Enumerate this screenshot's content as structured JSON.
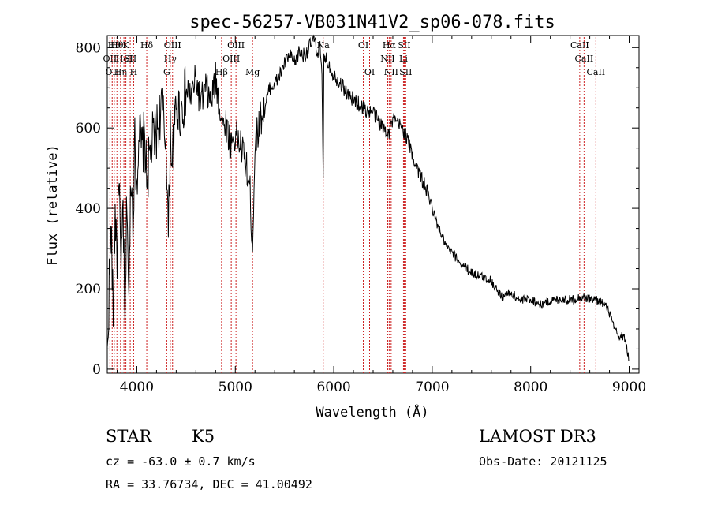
{
  "chart_data": {
    "type": "line",
    "title": "spec-56257-VB031N41V2_sp06-078.fits",
    "xlabel": "Wavelength (Å)",
    "ylabel": "Flux (relative)",
    "xlim": [
      3700,
      9100
    ],
    "ylim": [
      -10,
      830
    ],
    "x_ticks": [
      4000,
      5000,
      6000,
      7000,
      8000,
      9000
    ],
    "y_ticks": [
      0,
      200,
      400,
      600,
      800
    ],
    "x_tick_labels": [
      "4000",
      "5000",
      "6000",
      "7000",
      "8000",
      "9000"
    ],
    "y_tick_labels": [
      "0",
      "200",
      "400",
      "600",
      "800"
    ],
    "series": [
      {
        "name": "spectrum",
        "x": [
          3700,
          3720,
          3740,
          3760,
          3780,
          3800,
          3820,
          3840,
          3860,
          3880,
          3900,
          3920,
          3940,
          3960,
          3980,
          4000,
          4020,
          4050,
          4080,
          4100,
          4150,
          4200,
          4250,
          4300,
          4320,
          4340,
          4360,
          4400,
          4450,
          4500,
          4550,
          4600,
          4650,
          4700,
          4750,
          4800,
          4850,
          4880,
          4900,
          4950,
          5000,
          5050,
          5100,
          5150,
          5175,
          5200,
          5250,
          5300,
          5350,
          5400,
          5450,
          5500,
          5550,
          5600,
          5650,
          5700,
          5750,
          5800,
          5830,
          5860,
          5880,
          5893,
          5900,
          5920,
          5950,
          6000,
          6050,
          6100,
          6150,
          6200,
          6250,
          6300,
          6350,
          6400,
          6450,
          6500,
          6563,
          6600,
          6650,
          6700,
          6750,
          6800,
          6850,
          6900,
          6950,
          7000,
          7050,
          7100,
          7150,
          7200,
          7300,
          7400,
          7500,
          7600,
          7700,
          7800,
          7900,
          8000,
          8100,
          8200,
          8300,
          8400,
          8500,
          8600,
          8700,
          8750,
          8800,
          8850,
          8900,
          8950,
          9000
        ],
        "y": [
          20,
          220,
          350,
          120,
          400,
          280,
          500,
          200,
          420,
          80,
          450,
          150,
          500,
          380,
          560,
          460,
          600,
          540,
          580,
          470,
          560,
          590,
          650,
          560,
          320,
          600,
          520,
          650,
          640,
          690,
          680,
          720,
          660,
          700,
          660,
          720,
          640,
          600,
          620,
          560,
          580,
          560,
          520,
          440,
          300,
          560,
          620,
          650,
          700,
          710,
          730,
          760,
          780,
          760,
          790,
          780,
          800,
          820,
          790,
          800,
          720,
          480,
          790,
          770,
          760,
          730,
          720,
          700,
          680,
          670,
          660,
          650,
          640,
          640,
          620,
          600,
          590,
          620,
          610,
          600,
          570,
          530,
          500,
          470,
          440,
          400,
          360,
          330,
          300,
          290,
          260,
          240,
          230,
          220,
          180,
          190,
          170,
          175,
          160,
          170,
          175,
          172,
          178,
          175,
          170,
          160,
          140,
          100,
          75,
          85,
          20
        ]
      }
    ],
    "line_markers": [
      {
        "wl": 3727,
        "row": 1,
        "label": "OII"
      },
      {
        "wl": 3750,
        "row": 2,
        "label": "OII"
      },
      {
        "wl": 3771,
        "row": 0,
        "label": "Hθ"
      },
      {
        "wl": 3798,
        "row": 0,
        "label": "Hθ"
      },
      {
        "wl": 3835,
        "row": 2,
        "label": "Hη"
      },
      {
        "wl": 3869,
        "row": 1,
        "label": "HeI"
      },
      {
        "wl": 3889,
        "row": 0,
        "label": "K"
      },
      {
        "wl": 3933,
        "row": 1,
        "label": "SII"
      },
      {
        "wl": 3968,
        "row": 2,
        "label": "H"
      },
      {
        "wl": 4101,
        "row": 0,
        "label": "Hδ"
      },
      {
        "wl": 4304,
        "row": 2,
        "label": "G"
      },
      {
        "wl": 4340,
        "row": 1,
        "label": "Hγ"
      },
      {
        "wl": 4363,
        "row": 0,
        "label": "OIII"
      },
      {
        "wl": 4861,
        "row": 2,
        "label": "Hβ"
      },
      {
        "wl": 4959,
        "row": 1,
        "label": "OIII"
      },
      {
        "wl": 5007,
        "row": 0,
        "label": "OIII"
      },
      {
        "wl": 5175,
        "row": 2,
        "label": "Mg"
      },
      {
        "wl": 5893,
        "row": 0,
        "label": "Na"
      },
      {
        "wl": 6300,
        "row": 0,
        "label": "OI"
      },
      {
        "wl": 6364,
        "row": 2,
        "label": "OI"
      },
      {
        "wl": 6548,
        "row": 1,
        "label": "NII"
      },
      {
        "wl": 6563,
        "row": 0,
        "label": "Hα"
      },
      {
        "wl": 6583,
        "row": 2,
        "label": "NII"
      },
      {
        "wl": 6708,
        "row": 1,
        "label": "Li"
      },
      {
        "wl": 6716,
        "row": 0,
        "label": "SII"
      },
      {
        "wl": 6731,
        "row": 2,
        "label": "SII"
      },
      {
        "wl": 8498,
        "row": 0,
        "label": "CaII"
      },
      {
        "wl": 8542,
        "row": 1,
        "label": "CaII"
      },
      {
        "wl": 8662,
        "row": 2,
        "label": "CaII"
      }
    ],
    "line_marker_color": "#cc2222"
  },
  "info": {
    "object_class": "STAR",
    "subclass": "K5",
    "survey": "LAMOST DR3",
    "redshift": "cz = -63.0 ± 0.7 km/s",
    "obs_date": "Obs-Date: 20121125",
    "coords": "RA =  33.76734, DEC =  41.00492"
  }
}
